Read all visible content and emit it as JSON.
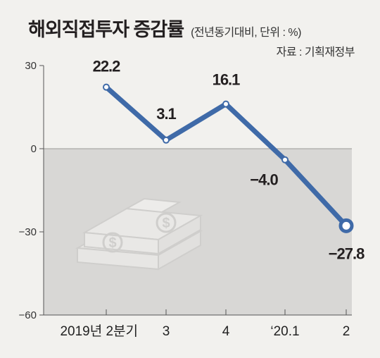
{
  "header": {
    "title": "해외직접투자 증감률",
    "subtitle": "(전년동기대비, 단위 : %)",
    "source": "자료 : 기획재정부"
  },
  "chart_data": {
    "type": "line",
    "title": "해외직접투자 증감률",
    "unit": "%",
    "categories": [
      "2019년 2분기",
      "3",
      "4",
      "‘20.1",
      "2"
    ],
    "series": [
      {
        "values": [
          22.2,
          3.1,
          16.1,
          -4.0,
          -27.8
        ]
      }
    ],
    "data_labels": [
      "22.2",
      "3.1",
      "16.1",
      "−4.0",
      "−27.8"
    ],
    "yticks": [
      30,
      0,
      -30,
      -60
    ],
    "ytick_labels": [
      "30",
      "0",
      "−30",
      "−60"
    ],
    "ylim": [
      -60,
      30
    ],
    "negative_region_shaded": true,
    "line_color": "#3f6aa8",
    "shade_color": "#d8d7d5",
    "illustration": "money-stack-icon"
  }
}
